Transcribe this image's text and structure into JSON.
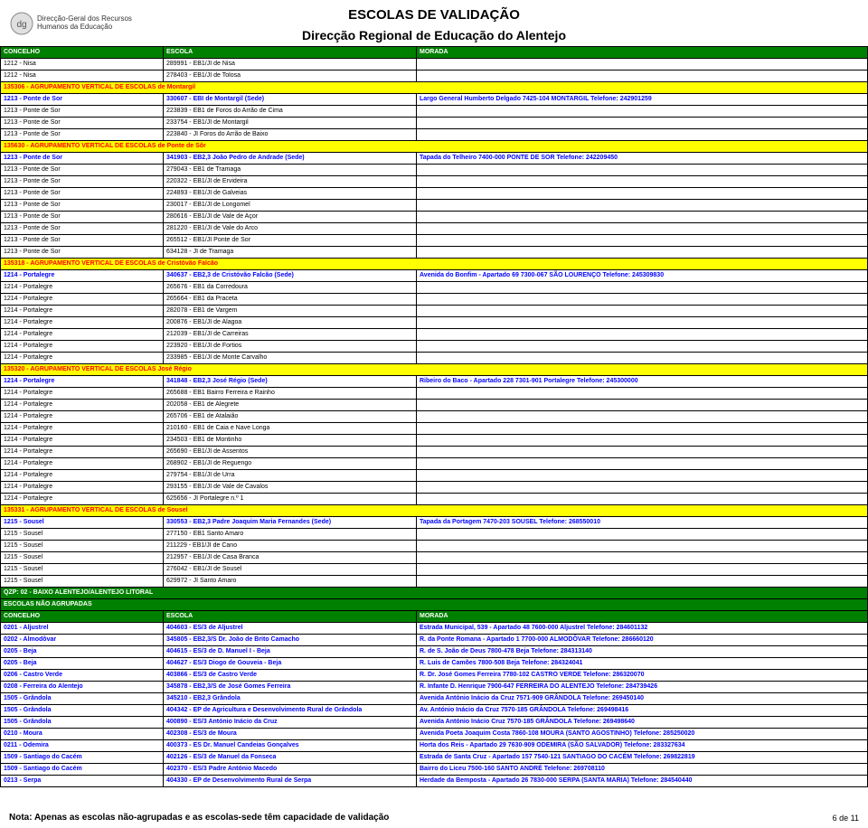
{
  "logo_text": "Direcção-Geral dos Recursos\nHumanos da Educação",
  "title": "ESCOLAS DE VALIDAÇÃO",
  "subtitle": "Direcção Regional de Educação do Alentejo",
  "columns": [
    "CONCELHO",
    "ESCOLA",
    "MORADA"
  ],
  "footer_note": "Nota: Apenas as escolas não-agrupadas e as escolas-sede têm capacidade de validação",
  "page": "6 de 11",
  "rows": [
    {
      "t": "h"
    },
    {
      "c": [
        "1212 - Nisa",
        "289991 - EB1/JI de Nisa",
        ""
      ]
    },
    {
      "c": [
        "1212 - Nisa",
        "278403 - EB1/JI de Tolosa",
        ""
      ]
    },
    {
      "t": "g",
      "c": [
        "135306 - AGRUPAMENTO VERTICAL DE ESCOLAS de Montargil",
        "",
        ""
      ]
    },
    {
      "t": "s",
      "c": [
        "1213 - Ponte de Sor",
        "330607 - EBI de Montargil (Sede)",
        "Largo General Humberto Delgado  7425-104 MONTARGIL Telefone: 242901259"
      ]
    },
    {
      "c": [
        "1213 - Ponte de Sor",
        "223839 - EB1 de Foros do Arrão de Cima",
        ""
      ]
    },
    {
      "c": [
        "1213 - Ponte de Sor",
        "233754 - EB1/JI de Montargil",
        ""
      ]
    },
    {
      "c": [
        "1213 - Ponte de Sor",
        "223840 - JI Foros do Arrão de Baixo",
        ""
      ]
    },
    {
      "t": "g",
      "c": [
        "135630 - AGRUPAMENTO VERTICAL DE ESCOLAS de Ponte de Sôr",
        "",
        ""
      ]
    },
    {
      "t": "s",
      "c": [
        "1213 - Ponte de Sor",
        "341903 - EB2,3 João Pedro de Andrade (Sede)",
        "Tapada do Telheiro  7400-000 PONTE DE SOR Telefone: 242209450"
      ]
    },
    {
      "c": [
        "1213 - Ponte de Sor",
        "279043 - EB1 de Tramaga",
        ""
      ]
    },
    {
      "c": [
        "1213 - Ponte de Sor",
        "220322 - EB1/JI de Ervideira",
        ""
      ]
    },
    {
      "c": [
        "1213 - Ponte de Sor",
        "224893 - EB1/JI de Galveias",
        ""
      ]
    },
    {
      "c": [
        "1213 - Ponte de Sor",
        "230017 - EB1/JI de Longomel",
        ""
      ]
    },
    {
      "c": [
        "1213 - Ponte de Sor",
        "280616 - EB1/JI de Vale de Açor",
        ""
      ]
    },
    {
      "c": [
        "1213 - Ponte de Sor",
        "281220 - EB1/JI de Vale do Arco",
        ""
      ]
    },
    {
      "c": [
        "1213 - Ponte de Sor",
        "265512 - EB1/JI Ponte de Sor",
        ""
      ]
    },
    {
      "c": [
        "1213 - Ponte de Sor",
        "634128 - JI de Tramaga",
        ""
      ]
    },
    {
      "t": "g",
      "c": [
        "135318 - AGRUPAMENTO VERTICAL DE ESCOLAS de Cristóvão Falcão",
        "",
        ""
      ]
    },
    {
      "t": "s",
      "c": [
        "1214 - Portalegre",
        "340637 - EB2,3 de Cristóvão Falcão (Sede)",
        "Avenida do Bonfim - Apartado 69  7300-067 SÃO LOURENÇO Telefone: 245309830"
      ]
    },
    {
      "c": [
        "1214 - Portalegre",
        "265676 - EB1 da Corredoura",
        ""
      ]
    },
    {
      "c": [
        "1214 - Portalegre",
        "265664 - EB1 da Praceta",
        ""
      ]
    },
    {
      "c": [
        "1214 - Portalegre",
        "282078 - EB1 de Vargem",
        ""
      ]
    },
    {
      "c": [
        "1214 - Portalegre",
        "200876 - EB1/JI de Alagoa",
        ""
      ]
    },
    {
      "c": [
        "1214 - Portalegre",
        "212039 - EB1/JI de Carreiras",
        ""
      ]
    },
    {
      "c": [
        "1214 - Portalegre",
        "223920 - EB1/JI de Fortios",
        ""
      ]
    },
    {
      "c": [
        "1214 - Portalegre",
        "233985 - EB1/JI de Monte Carvalho",
        ""
      ]
    },
    {
      "t": "g",
      "c": [
        "135320 - AGRUPAMENTO VERTICAL DE ESCOLAS José Régio",
        "",
        ""
      ]
    },
    {
      "t": "s",
      "c": [
        "1214 - Portalegre",
        "341848 - EB2,3 José Régio (Sede)",
        "Ribeiro do Baco - Apartado 228  7301-901 Portalegre Telefone: 245300000"
      ]
    },
    {
      "c": [
        "1214 - Portalegre",
        "265688 - EB1 Bairro Ferreira e Rainho",
        ""
      ]
    },
    {
      "c": [
        "1214 - Portalegre",
        "202058 - EB1 de Alegrete",
        ""
      ]
    },
    {
      "c": [
        "1214 - Portalegre",
        "265706 - EB1 de Atalaião",
        ""
      ]
    },
    {
      "c": [
        "1214 - Portalegre",
        "210160 - EB1 de Caia e Nave Longa",
        ""
      ]
    },
    {
      "c": [
        "1214 - Portalegre",
        "234503 - EB1 de Montinho",
        ""
      ]
    },
    {
      "c": [
        "1214 - Portalegre",
        "265690 - EB1/JI de Assentos",
        ""
      ]
    },
    {
      "c": [
        "1214 - Portalegre",
        "268902 - EB1/JI de Reguengo",
        ""
      ]
    },
    {
      "c": [
        "1214 - Portalegre",
        "279754 - EB1/JI de Urra",
        ""
      ]
    },
    {
      "c": [
        "1214 - Portalegre",
        "293155 - EB1/JI de Vale de Cavalos",
        ""
      ]
    },
    {
      "c": [
        "1214 - Portalegre",
        "625656 - JI Portalegre n.º 1",
        ""
      ]
    },
    {
      "t": "g",
      "c": [
        "135331 - AGRUPAMENTO VERTICAL DE ESCOLAS de Sousel",
        "",
        ""
      ]
    },
    {
      "t": "s",
      "c": [
        "1215 - Sousel",
        "330553 - EB2,3 Padre Joaquim Maria Fernandes (Sede)",
        "Tapada da Portagem  7470-203 SOUSEL Telefone: 268550010"
      ]
    },
    {
      "c": [
        "1215 - Sousel",
        "277150 - EB1 Santo Amaro",
        ""
      ]
    },
    {
      "c": [
        "1215 - Sousel",
        "211229 - EB1/JI de Cano",
        ""
      ]
    },
    {
      "c": [
        "1215 - Sousel",
        "212957 - EB1/JI de Casa Branca",
        ""
      ]
    },
    {
      "c": [
        "1215 - Sousel",
        "276042 - EB1/JI de Sousel",
        ""
      ]
    },
    {
      "c": [
        "1215 - Sousel",
        "629972 - JI Santo Amaro",
        ""
      ]
    },
    {
      "t": "sec",
      "c": [
        "QZP: 02 - BAIXO ALENTEJO/ALENTEJO LITORAL",
        "",
        ""
      ]
    },
    {
      "t": "sec",
      "c": [
        "ESCOLAS NÃO AGRUPADAS",
        "",
        ""
      ]
    },
    {
      "t": "h2"
    },
    {
      "t": "s",
      "c": [
        "0201 - Aljustrel",
        "404603 - ES/3 de Aljustrel",
        "Estrada Municipal, 539 - Apartado 48  7600-000 Aljustrel Telefone: 284601132"
      ]
    },
    {
      "t": "s",
      "c": [
        "0202 - Almodôvar",
        "345805 - EB2,3/S Dr. João de Brito Camacho",
        "R. da Ponte Romana - Apartado 1  7700-000 ALMODÔVAR Telefone: 286660120"
      ]
    },
    {
      "t": "s",
      "c": [
        "0205 - Beja",
        "404615 - ES/3 de D. Manuel I - Beja",
        "R. de S. João de Deus  7800-478 Beja Telefone: 284313140"
      ]
    },
    {
      "t": "s",
      "c": [
        "0205 - Beja",
        "404627 - ES/3 Diogo de Gouveia - Beja",
        "R. Luis de Camões  7800-508 Beja Telefone: 284324041"
      ]
    },
    {
      "t": "s",
      "c": [
        "0206 - Castro Verde",
        "403866 - ES/3 de Castro Verde",
        "R. Dr. José Gomes Ferreira  7780-102 CASTRO VERDE Telefone: 286320070"
      ]
    },
    {
      "t": "s",
      "c": [
        "0208 - Ferreira do Alentejo",
        "345878 - EB2,3/S de José Gomes Ferreira",
        "R. Infante D. Henrique  7900-647 FERREIRA DO ALENTEJO Telefone: 284739426"
      ]
    },
    {
      "t": "s",
      "c": [
        "1505 - Grândola",
        "345210 - EB2,3 Grândola",
        "Avenida António Inácio da Cruz  7571-909 GRÂNDOLA Telefone: 269450140"
      ]
    },
    {
      "t": "s",
      "c": [
        "1505 - Grândola",
        "404342 - EP de Agricultura e Desenvolvimento Rural de Grândola",
        "Av. António Inácio da Cruz  7570-185 GRÂNDOLA Telefone: 269498416"
      ]
    },
    {
      "t": "s",
      "c": [
        "1505 - Grândola",
        "400890 - ES/3 António Inácio da Cruz",
        "Avenida António Inácio Cruz  7570-185 GRÂNDOLA Telefone: 269498640"
      ]
    },
    {
      "t": "s",
      "c": [
        "0210 - Moura",
        "402308 - ES/3 de Moura",
        "Avenida Poeta Joaquim Costa  7860-108 MOURA (SANTO AGOSTINHO) Telefone: 285250020"
      ]
    },
    {
      "t": "s",
      "c": [
        "0211 - Odemira",
        "400373 - ES Dr. Manuel Candeias Gonçalves",
        "Horta dos Reis - Apartado 29  7630-909 ODEMIRA (SÃO SALVADOR) Telefone: 283327634"
      ]
    },
    {
      "t": "s",
      "c": [
        "1509 - Santiago do Cacém",
        "402126 - ES/3 de Manuel da Fonseca",
        "Estrada de Santa Cruz - Apartado 157  7540-121 SANTIAGO DO CACÉM Telefone: 269822819"
      ]
    },
    {
      "t": "s",
      "c": [
        "1509 - Santiago do Cacém",
        "402370 - ES/3 Padre António Macedo",
        "Bairro do Liceu  7500-160 SANTO ANDRÉ Telefone: 269708110"
      ]
    },
    {
      "t": "s",
      "c": [
        "0213 - Serpa",
        "404330 - EP de Desenvolvimento Rural de Serpa",
        "Herdade da Bemposta - Apartado 26  7830-000 SERPA (SANTA MARIA) Telefone: 284540440"
      ]
    }
  ]
}
